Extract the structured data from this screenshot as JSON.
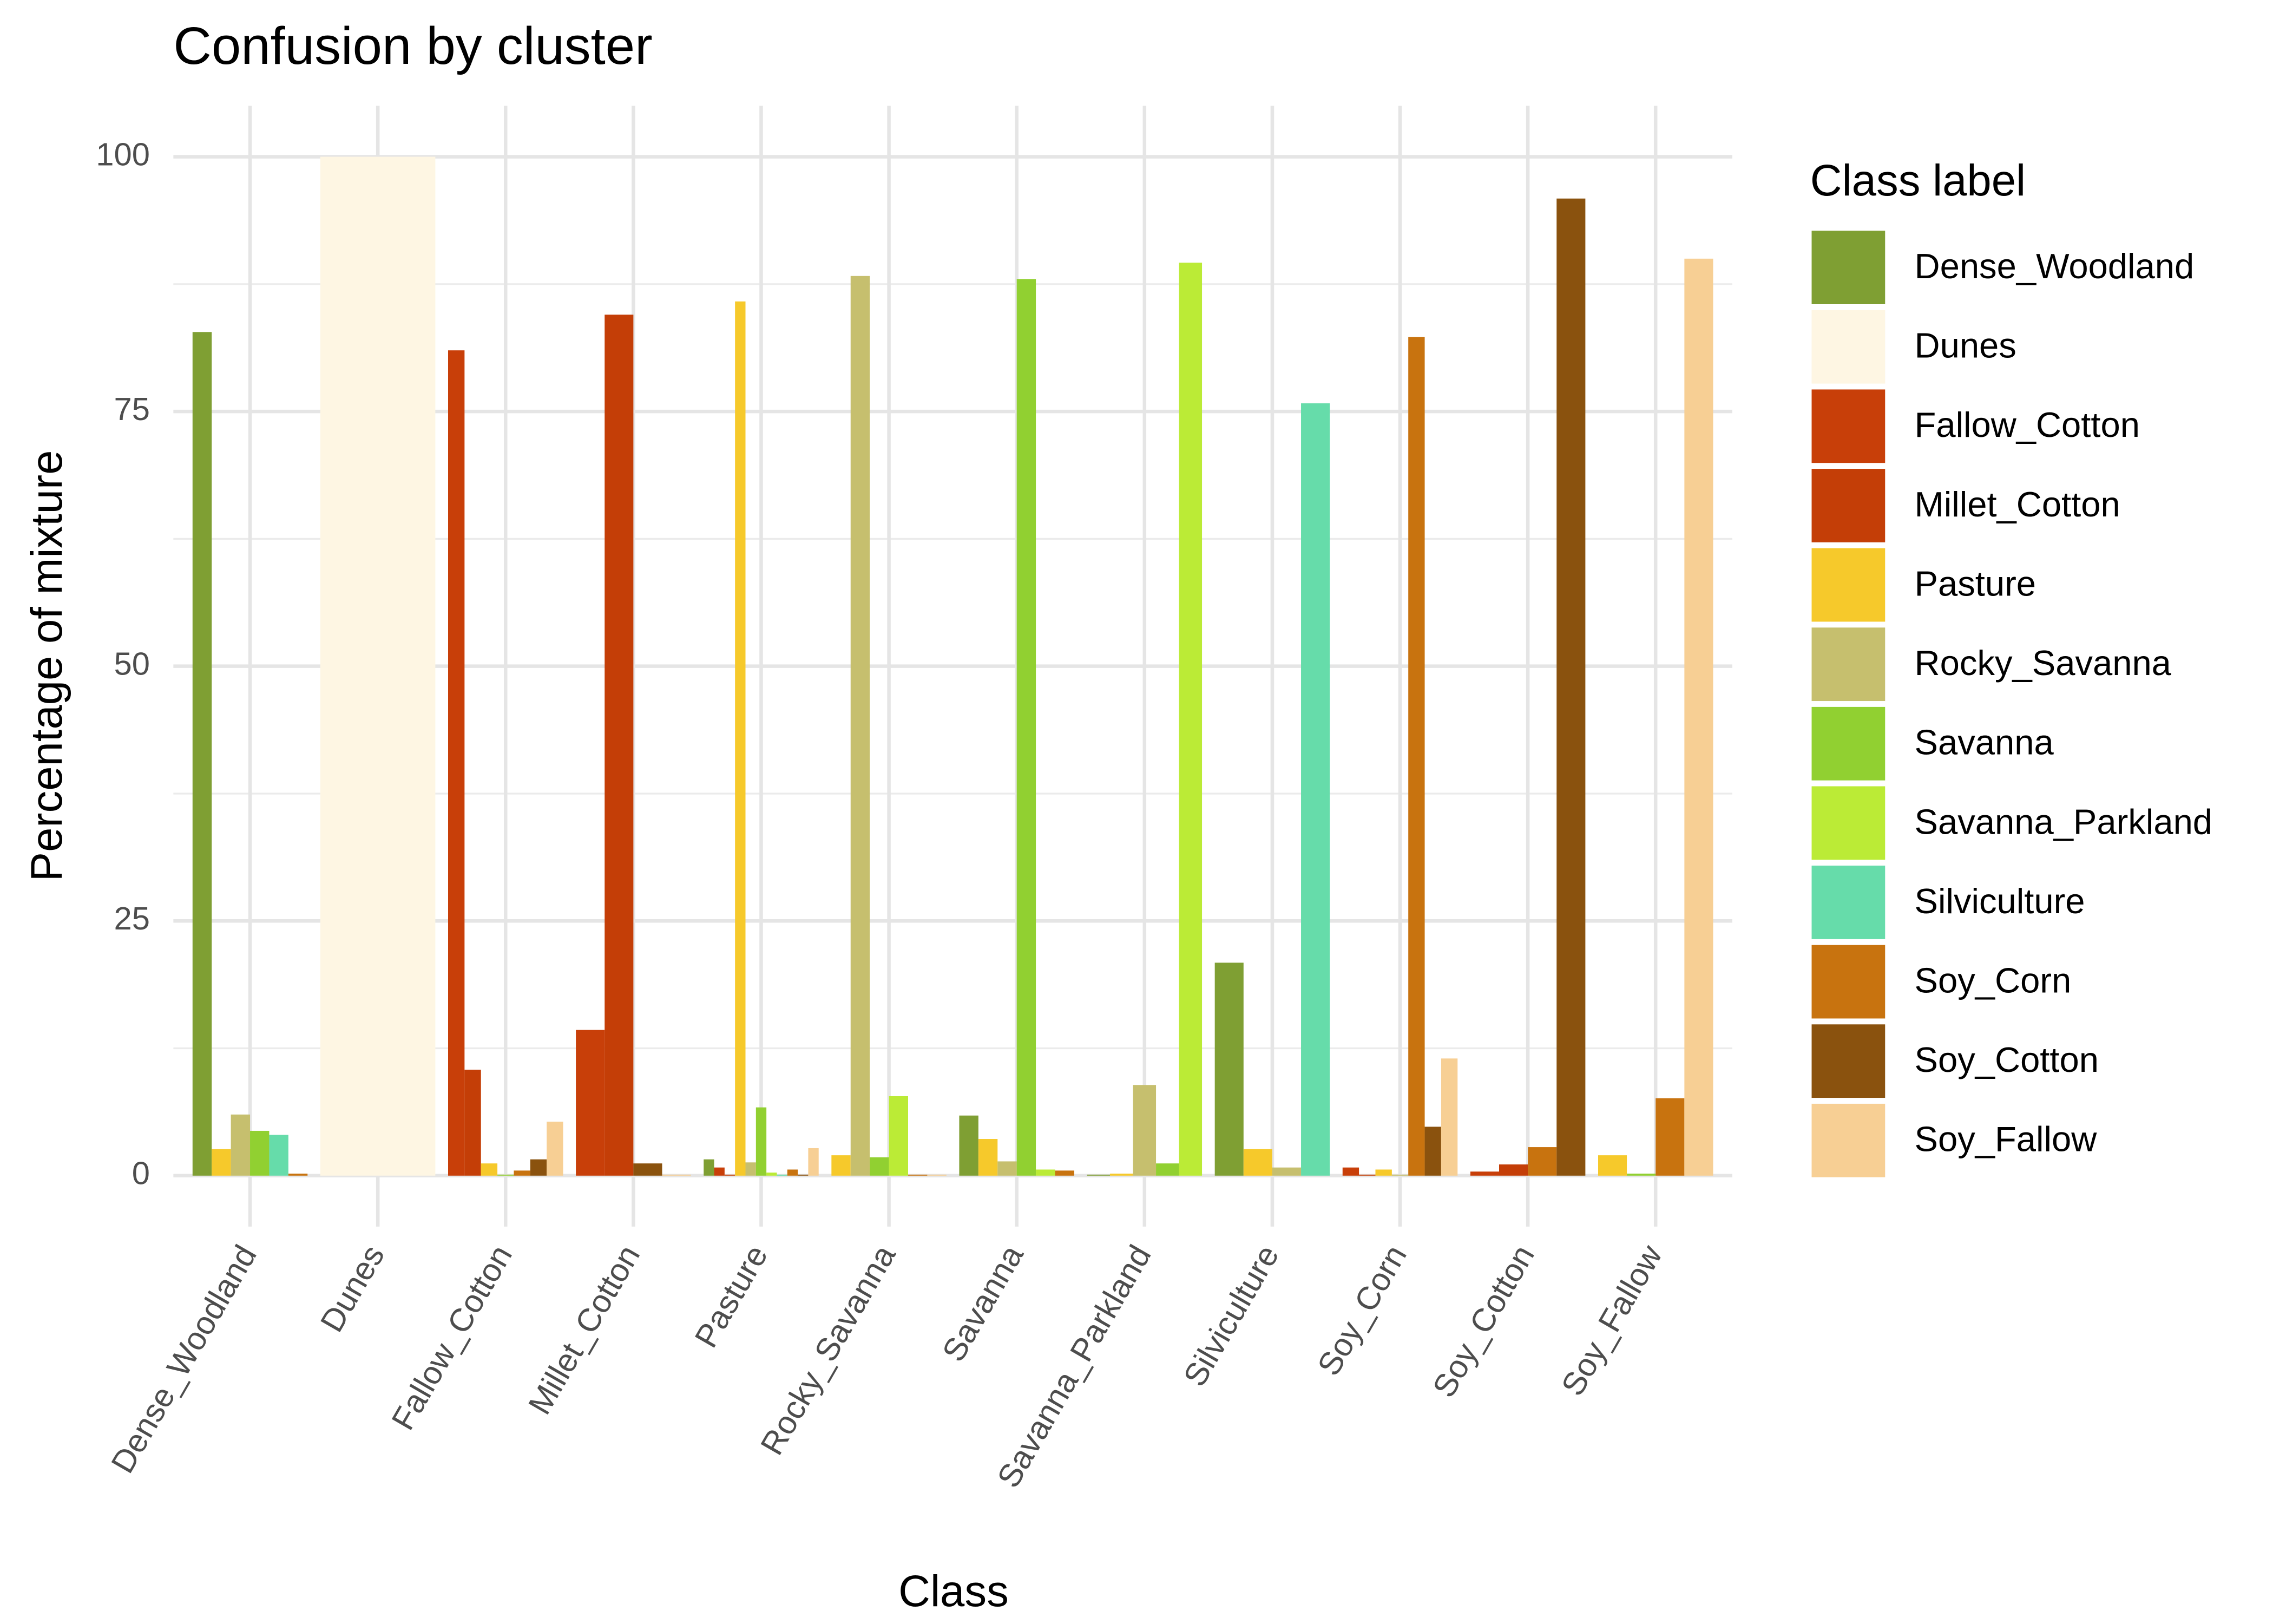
{
  "chart_data": {
    "type": "bar",
    "title": "Confusion by cluster",
    "x_label": "Class",
    "y_label": "Percentage of mixture",
    "legend_title": "Class label",
    "legend_position": "right",
    "grid": true,
    "categories": [
      "Dense_Woodland",
      "Dunes",
      "Fallow_Cotton",
      "Millet_Cotton",
      "Pasture",
      "Rocky_Savanna",
      "Savanna",
      "Savanna_Parkland",
      "Silviculture",
      "Soy_Corn",
      "Soy_Cotton",
      "Soy_Fallow"
    ],
    "ylim": [
      -5,
      105
    ],
    "yticks": [
      0,
      25,
      50,
      75,
      100
    ],
    "series": [
      {
        "name": "Dense_Woodland",
        "color": "#7f9f33",
        "values": [
          82.8,
          null,
          null,
          null,
          1.6,
          null,
          5.9,
          0.1,
          20.9,
          null,
          null,
          null
        ]
      },
      {
        "name": "Dunes",
        "color": "#fef6e3",
        "values": [
          null,
          100,
          null,
          null,
          null,
          null,
          null,
          null,
          null,
          null,
          null,
          null
        ]
      },
      {
        "name": "Fallow_Cotton",
        "color": "#c83f09",
        "values": [
          null,
          null,
          81,
          14.3,
          0.8,
          null,
          null,
          null,
          null,
          0.8,
          0.4,
          null
        ]
      },
      {
        "name": "Millet_Cotton",
        "color": "#c43e07",
        "values": [
          null,
          null,
          10.4,
          84.5,
          0.1,
          null,
          null,
          null,
          null,
          0.1,
          1.1,
          null
        ]
      },
      {
        "name": "Pasture",
        "color": "#f6c92b",
        "values": [
          2.6,
          null,
          1.2,
          null,
          85.8,
          2,
          3.6,
          0.2,
          2.6,
          0.6,
          null,
          2
        ]
      },
      {
        "name": "Rocky_Savanna",
        "color": "#c6bf6e",
        "values": [
          6,
          null,
          null,
          null,
          1.3,
          88.3,
          1.4,
          8.9,
          0.8,
          0.1,
          null,
          null
        ]
      },
      {
        "name": "Savanna",
        "color": "#91d031",
        "values": [
          4.4,
          null,
          0.1,
          null,
          6.7,
          1.8,
          88,
          1.2,
          null,
          null,
          null,
          0.2
        ]
      },
      {
        "name": "Savanna_Parkland",
        "color": "#bbeb36",
        "values": [
          null,
          null,
          null,
          null,
          0.3,
          7.8,
          0.6,
          89.6,
          null,
          null,
          null,
          null
        ]
      },
      {
        "name": "Silviculture",
        "color": "#66dcaa",
        "values": [
          4,
          null,
          null,
          null,
          0.1,
          null,
          null,
          null,
          75.8,
          null,
          null,
          null
        ]
      },
      {
        "name": "Soy_Corn",
        "color": "#c8730f",
        "values": [
          0.2,
          null,
          0.5,
          null,
          0.6,
          0.1,
          0.5,
          null,
          null,
          82.3,
          2.8,
          7.6
        ]
      },
      {
        "name": "Soy_Cotton",
        "color": "#8a520e",
        "values": [
          null,
          null,
          1.6,
          1.2,
          0.1,
          null,
          null,
          null,
          null,
          4.8,
          95.9,
          null
        ]
      },
      {
        "name": "Soy_Fallow",
        "color": "#f7cf94",
        "values": [
          null,
          null,
          5.3,
          0.1,
          2.7,
          0.1,
          null,
          null,
          null,
          11.5,
          null,
          90
        ]
      }
    ]
  }
}
